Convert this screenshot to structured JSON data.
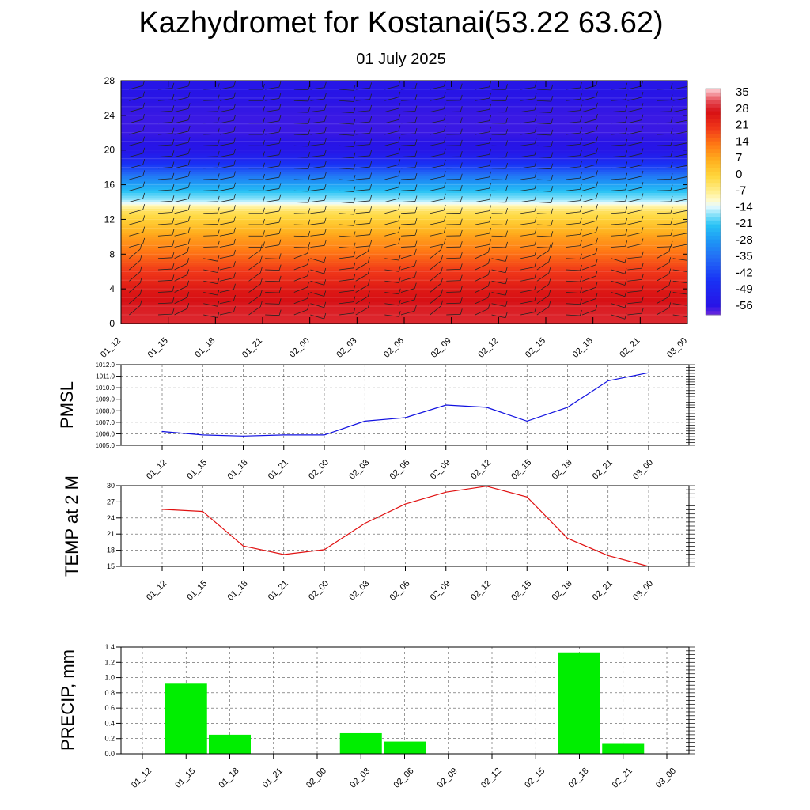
{
  "title": "Kazhydromet for Kostanai(53.22 63.62)",
  "subtitle": "01 July 2025",
  "colors": {
    "pmsl_line": "#1010e0",
    "temp_line": "#e01010",
    "precip_bar": "#00ee00",
    "grid": "#555555"
  },
  "chart_data": [
    {
      "type": "heatmap",
      "x": [
        "01_12",
        "01_15",
        "01_18",
        "01_21",
        "02_00",
        "02_03",
        "02_06",
        "02_09",
        "02_12",
        "02_15",
        "02_18",
        "02_21",
        "03_00"
      ],
      "ylim": [
        0,
        28
      ],
      "yticks": [
        "0",
        "4",
        "8",
        "12",
        "16",
        "20",
        "24",
        "28"
      ],
      "colorbar": {
        "labels": [
          "35",
          "28",
          "21",
          "14",
          "7",
          "0",
          "-7",
          "-14",
          "-21",
          "-28",
          "-35",
          "-42",
          "-49",
          "-56"
        ],
        "range": [
          -60,
          38
        ]
      },
      "temperature_profile": [
        {
          "level": 0,
          "value": 30
        },
        {
          "level": 2,
          "value": 29
        },
        {
          "level": 4,
          "value": 26
        },
        {
          "level": 6,
          "value": 21
        },
        {
          "level": 8,
          "value": 15
        },
        {
          "level": 10,
          "value": 9
        },
        {
          "level": 11,
          "value": 5
        },
        {
          "level": 12,
          "value": 1
        },
        {
          "level": 13,
          "value": -3
        },
        {
          "level": 14,
          "value": -14
        },
        {
          "level": 15,
          "value": -20
        },
        {
          "level": 16,
          "value": -26
        },
        {
          "level": 17,
          "value": -33
        },
        {
          "level": 18,
          "value": -42
        },
        {
          "level": 19,
          "value": -50
        },
        {
          "level": 20,
          "value": -55
        },
        {
          "level": 22,
          "value": -57
        },
        {
          "level": 24,
          "value": -57
        },
        {
          "level": 26,
          "value": -56
        },
        {
          "level": 28,
          "value": -55
        }
      ],
      "wind_barbs": "shown"
    },
    {
      "type": "line",
      "ylabel": "PMSL",
      "x": [
        "01_12",
        "01_15",
        "01_18",
        "01_21",
        "02_00",
        "02_03",
        "02_06",
        "02_09",
        "02_12",
        "02_15",
        "02_18",
        "02_21",
        "03_00"
      ],
      "values": [
        1006.2,
        1005.9,
        1005.8,
        1005.9,
        1005.9,
        1007.1,
        1007.4,
        1008.5,
        1008.3,
        1007.1,
        1008.3,
        1010.6,
        1011.3
      ],
      "ylim": [
        1005.0,
        1012.0
      ],
      "yticks": [
        "1005.0",
        "1006.0",
        "1007.0",
        "1008.0",
        "1009.0",
        "1010.0",
        "1011.0",
        "1012.0"
      ],
      "grid": true
    },
    {
      "type": "line",
      "ylabel": "TEMP at 2 M",
      "x": [
        "01_12",
        "01_15",
        "01_18",
        "01_21",
        "02_00",
        "02_03",
        "02_06",
        "02_09",
        "02_12",
        "02_15",
        "02_18",
        "02_21",
        "03_00"
      ],
      "values": [
        25.6,
        25.2,
        18.8,
        17.2,
        18.1,
        23.0,
        26.6,
        28.8,
        29.9,
        27.9,
        20.2,
        17.0,
        15.0
      ],
      "ylim": [
        15,
        30
      ],
      "yticks": [
        "15",
        "18",
        "21",
        "24",
        "27",
        "30"
      ],
      "grid": true
    },
    {
      "type": "bar",
      "ylabel": "PRECIP, mm",
      "x": [
        "01_12",
        "01_15",
        "01_18",
        "01_21",
        "02_00",
        "02_03",
        "02_06",
        "02_09",
        "02_12",
        "02_15",
        "02_18",
        "02_21",
        "03_00"
      ],
      "values": [
        0,
        0.92,
        0.25,
        0,
        0,
        0.27,
        0.16,
        0,
        0,
        0,
        1.33,
        0.14,
        0
      ],
      "ylim": [
        0,
        1.4
      ],
      "yticks": [
        "0.0",
        "0.2",
        "0.4",
        "0.6",
        "0.8",
        "1.0",
        "1.2",
        "1.4"
      ],
      "grid": true
    }
  ]
}
